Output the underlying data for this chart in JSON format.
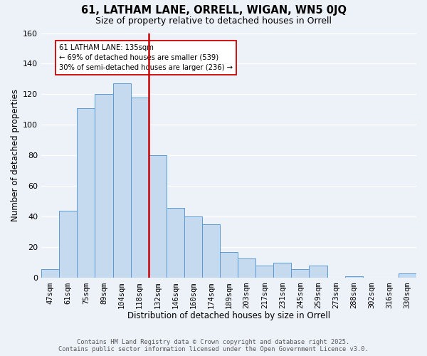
{
  "title": "61, LATHAM LANE, ORRELL, WIGAN, WN5 0JQ",
  "subtitle": "Size of property relative to detached houses in Orrell",
  "xlabel": "Distribution of detached houses by size in Orrell",
  "ylabel": "Number of detached properties",
  "categories": [
    "47sqm",
    "61sqm",
    "75sqm",
    "89sqm",
    "104sqm",
    "118sqm",
    "132sqm",
    "146sqm",
    "160sqm",
    "174sqm",
    "189sqm",
    "203sqm",
    "217sqm",
    "231sqm",
    "245sqm",
    "259sqm",
    "273sqm",
    "288sqm",
    "302sqm",
    "316sqm",
    "330sqm"
  ],
  "values": [
    6,
    44,
    111,
    120,
    127,
    118,
    80,
    46,
    40,
    35,
    17,
    13,
    8,
    10,
    6,
    8,
    0,
    1,
    0,
    0,
    3
  ],
  "bar_color": "#c5d9ef",
  "bar_edge_color": "#5b9bd5",
  "highlight_line_index": 6,
  "highlight_line_color": "#cc0000",
  "annotation_line1": "61 LATHAM LANE: 135sqm",
  "annotation_line2": "← 69% of detached houses are smaller (539)",
  "annotation_line3": "30% of semi-detached houses are larger (236) →",
  "annotation_box_edge_color": "#cc0000",
  "ylim": [
    0,
    160
  ],
  "yticks": [
    0,
    20,
    40,
    60,
    80,
    100,
    120,
    140,
    160
  ],
  "footer_line1": "Contains HM Land Registry data © Crown copyright and database right 2025.",
  "footer_line2": "Contains public sector information licensed under the Open Government Licence v3.0.",
  "bg_color": "#edf2f9",
  "grid_color": "#ffffff",
  "title_fontsize": 10.5,
  "subtitle_fontsize": 9,
  "axis_label_fontsize": 8.5,
  "tick_fontsize": 7.5,
  "footer_fontsize": 6.2
}
